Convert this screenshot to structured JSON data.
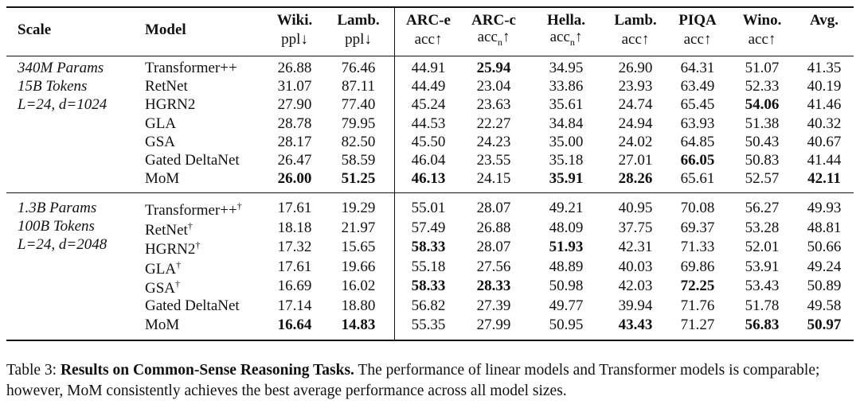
{
  "table": {
    "headers": [
      {
        "label": "Scale"
      },
      {
        "label": "Model"
      },
      {
        "label": "Wiki.",
        "metric": "ppl↓"
      },
      {
        "label": "Lamb.",
        "metric": "ppl↓"
      },
      {
        "label": "ARC-e",
        "metric": "acc↑"
      },
      {
        "label": "ARC-c",
        "metric": "acc",
        "sub": "n",
        "arrow": "↑"
      },
      {
        "label": "Hella.",
        "metric": "acc",
        "sub": "n",
        "arrow": "↑"
      },
      {
        "label": "Lamb.",
        "metric": "acc↑"
      },
      {
        "label": "PIQA",
        "metric": "acc↑"
      },
      {
        "label": "Wino.",
        "metric": "acc↑"
      },
      {
        "label": "Avg."
      }
    ],
    "groups": [
      {
        "scale": [
          "340M Params",
          "15B Tokens",
          "L=24, d=1024"
        ],
        "rows": [
          {
            "model": "Transformer++",
            "values": [
              "26.88",
              "76.46",
              "44.91",
              "25.94",
              "34.95",
              "26.90",
              "64.31",
              "51.07",
              "41.35"
            ],
            "bold": [
              3
            ]
          },
          {
            "model": "RetNet",
            "values": [
              "31.07",
              "87.11",
              "44.49",
              "23.04",
              "33.86",
              "23.93",
              "63.49",
              "52.33",
              "40.19"
            ],
            "bold": []
          },
          {
            "model": "HGRN2",
            "values": [
              "27.90",
              "77.40",
              "45.24",
              "23.63",
              "35.61",
              "24.74",
              "65.45",
              "54.06",
              "41.46"
            ],
            "bold": [
              7
            ]
          },
          {
            "model": "GLA",
            "values": [
              "28.78",
              "79.95",
              "44.53",
              "22.27",
              "34.84",
              "24.94",
              "63.93",
              "51.38",
              "40.32"
            ],
            "bold": []
          },
          {
            "model": "GSA",
            "values": [
              "28.17",
              "82.50",
              "45.50",
              "24.23",
              "35.00",
              "24.02",
              "64.85",
              "50.43",
              "40.67"
            ],
            "bold": []
          },
          {
            "model": "Gated DeltaNet",
            "values": [
              "26.47",
              "58.59",
              "46.04",
              "23.55",
              "35.18",
              "27.01",
              "66.05",
              "50.83",
              "41.44"
            ],
            "bold": [
              6
            ]
          },
          {
            "model": "MoM",
            "values": [
              "26.00",
              "51.25",
              "46.13",
              "24.15",
              "35.91",
              "28.26",
              "65.61",
              "52.57",
              "42.11"
            ],
            "bold": [
              0,
              1,
              2,
              4,
              5,
              8
            ]
          }
        ]
      },
      {
        "scale": [
          "1.3B Params",
          "100B Tokens",
          "L=24, d=2048"
        ],
        "rows": [
          {
            "model": "Transformer++",
            "mark": "†",
            "values": [
              "17.61",
              "19.29",
              "55.01",
              "28.07",
              "49.21",
              "40.95",
              "70.08",
              "56.27",
              "49.93"
            ],
            "bold": []
          },
          {
            "model": "RetNet",
            "mark": "†",
            "values": [
              "18.18",
              "21.97",
              "57.49",
              "26.88",
              "48.09",
              "37.75",
              "69.37",
              "53.28",
              "48.81"
            ],
            "bold": []
          },
          {
            "model": "HGRN2",
            "mark": "†",
            "values": [
              "17.32",
              "15.65",
              "58.33",
              "28.07",
              "51.93",
              "42.31",
              "71.33",
              "52.01",
              "50.66"
            ],
            "bold": [
              2,
              4
            ]
          },
          {
            "model": "GLA",
            "mark": "†",
            "values": [
              "17.61",
              "19.66",
              "55.18",
              "27.56",
              "48.89",
              "40.03",
              "69.86",
              "53.91",
              "49.24"
            ],
            "bold": []
          },
          {
            "model": "GSA",
            "mark": "†",
            "values": [
              "16.69",
              "16.02",
              "58.33",
              "28.33",
              "50.98",
              "42.03",
              "72.25",
              "53.43",
              "50.89"
            ],
            "bold": [
              2,
              3,
              6
            ]
          },
          {
            "model": "Gated DeltaNet",
            "values": [
              "17.14",
              "18.80",
              "56.82",
              "27.39",
              "49.77",
              "39.94",
              "71.76",
              "51.78",
              "49.58"
            ],
            "bold": []
          },
          {
            "model": "MoM",
            "values": [
              "16.64",
              "14.83",
              "55.35",
              "27.99",
              "50.95",
              "43.43",
              "71.27",
              "56.83",
              "50.97"
            ],
            "bold": [
              0,
              1,
              5,
              7,
              8
            ]
          }
        ]
      }
    ]
  },
  "caption": {
    "label": "Table 3:",
    "title": "Results on Common-Sense Reasoning Tasks.",
    "text": "The performance of linear models and Transformer models is comparable; however, MoM consistently achieves the best average performance across all model sizes."
  }
}
